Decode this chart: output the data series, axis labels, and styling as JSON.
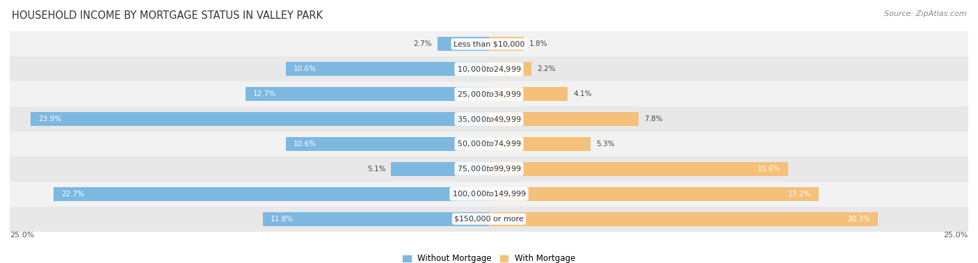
{
  "title": "HOUSEHOLD INCOME BY MORTGAGE STATUS IN VALLEY PARK",
  "source": "Source: ZipAtlas.com",
  "categories": [
    "Less than $10,000",
    "$10,000 to $24,999",
    "$25,000 to $34,999",
    "$35,000 to $49,999",
    "$50,000 to $74,999",
    "$75,000 to $99,999",
    "$100,000 to $149,999",
    "$150,000 or more"
  ],
  "without_mortgage": [
    2.7,
    10.6,
    12.7,
    23.9,
    10.6,
    5.1,
    22.7,
    11.8
  ],
  "with_mortgage": [
    1.8,
    2.2,
    4.1,
    7.8,
    5.3,
    15.6,
    17.2,
    20.3
  ],
  "color_without": "#7db8e0",
  "color_with": "#f5c07a",
  "axis_max": 25.0,
  "row_colors": [
    "#f2f2f2",
    "#e8e8e8"
  ],
  "title_fontsize": 10.5,
  "source_fontsize": 8,
  "bar_label_fontsize": 7.5,
  "category_fontsize": 8,
  "axis_label_fontsize": 8,
  "legend_fontsize": 8.5,
  "white_text_threshold": 10.0
}
